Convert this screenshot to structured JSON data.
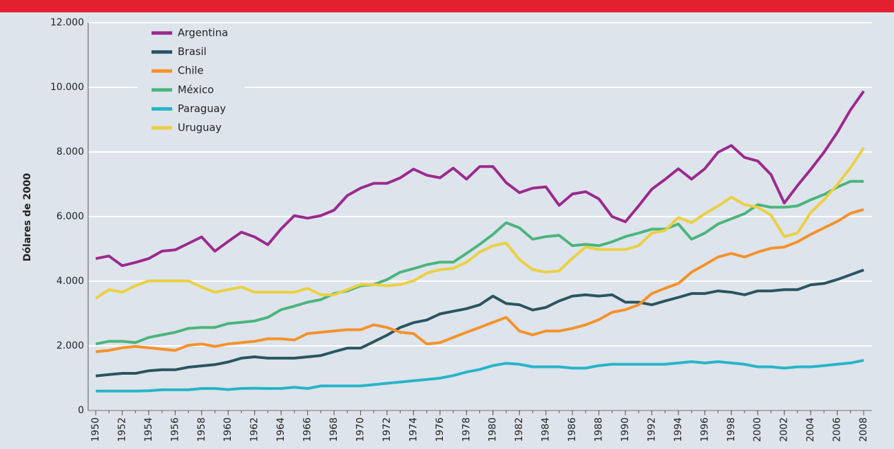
{
  "chart_data": {
    "type": "line",
    "ylabel": "Dólares de 2000",
    "x": [
      1950,
      1951,
      1952,
      1953,
      1954,
      1955,
      1956,
      1957,
      1958,
      1959,
      1960,
      1961,
      1962,
      1963,
      1964,
      1965,
      1966,
      1967,
      1968,
      1969,
      1970,
      1971,
      1972,
      1973,
      1974,
      1975,
      1976,
      1977,
      1978,
      1979,
      1980,
      1981,
      1982,
      1983,
      1984,
      1985,
      1986,
      1987,
      1988,
      1989,
      1990,
      1991,
      1992,
      1993,
      1994,
      1995,
      1996,
      1997,
      1998,
      1999,
      2000,
      2001,
      2002,
      2003,
      2004,
      2005,
      2006,
      2007,
      2008
    ],
    "xlim": [
      1950,
      2008
    ],
    "xticks": [
      1950,
      1952,
      1954,
      1956,
      1958,
      1960,
      1962,
      1964,
      1966,
      1968,
      1970,
      1972,
      1974,
      1976,
      1978,
      1980,
      1982,
      1984,
      1986,
      1988,
      1990,
      1992,
      1994,
      1996,
      1998,
      2000,
      2002,
      2004,
      2006,
      2008
    ],
    "ylim": [
      0,
      12000
    ],
    "yticks": [
      0,
      {
        "value": 2000,
        "label": "2.000"
      },
      {
        "value": 4000,
        "label": "4.000"
      },
      {
        "value": 6000,
        "label": "6.000"
      },
      {
        "value": 8000,
        "label": "8.000"
      },
      {
        "value": 10000,
        "label": "10.000"
      },
      {
        "value": 12000,
        "label": "12.000"
      }
    ],
    "grid": true,
    "legend": "upper left",
    "series": [
      {
        "name": "Argentina",
        "color": "#9b2a8e",
        "values": [
          4700,
          4780,
          4480,
          4580,
          4700,
          4930,
          4970,
          5170,
          5370,
          4930,
          5230,
          5520,
          5370,
          5130,
          5620,
          6030,
          5950,
          6030,
          6200,
          6650,
          6880,
          7030,
          7030,
          7200,
          7470,
          7280,
          7200,
          7500,
          7160,
          7550,
          7550,
          7050,
          6740,
          6880,
          6920,
          6350,
          6700,
          6770,
          6550,
          6000,
          5840,
          6330,
          6850,
          7150,
          7480,
          7160,
          7480,
          7990,
          8200,
          7830,
          7720,
          7300,
          6420,
          6960,
          7460,
          7990,
          8600,
          9300,
          9880
        ]
      },
      {
        "name": "Brasil",
        "color": "#2a5560",
        "values": [
          1070,
          1110,
          1150,
          1150,
          1230,
          1260,
          1260,
          1340,
          1380,
          1420,
          1500,
          1620,
          1660,
          1620,
          1620,
          1620,
          1660,
          1700,
          1820,
          1930,
          1930,
          2130,
          2330,
          2570,
          2720,
          2800,
          2990,
          3070,
          3150,
          3270,
          3540,
          3310,
          3270,
          3110,
          3190,
          3390,
          3540,
          3580,
          3540,
          3580,
          3350,
          3350,
          3270,
          3390,
          3500,
          3620,
          3620,
          3700,
          3660,
          3580,
          3700,
          3700,
          3740,
          3740,
          3890,
          3930,
          4050,
          4200,
          4350
        ]
      },
      {
        "name": "Chile",
        "color": "#f5922a",
        "values": [
          1820,
          1860,
          1940,
          1980,
          1940,
          1900,
          1860,
          2020,
          2060,
          1980,
          2060,
          2100,
          2140,
          2220,
          2220,
          2180,
          2380,
          2420,
          2460,
          2500,
          2500,
          2650,
          2570,
          2420,
          2380,
          2060,
          2100,
          2260,
          2420,
          2570,
          2730,
          2880,
          2460,
          2340,
          2460,
          2460,
          2540,
          2650,
          2810,
          3040,
          3120,
          3270,
          3620,
          3780,
          3930,
          4280,
          4510,
          4750,
          4860,
          4750,
          4900,
          5020,
          5060,
          5220,
          5450,
          5650,
          5850,
          6100,
          6220
        ]
      },
      {
        "name": "México",
        "color": "#4bb57c",
        "values": [
          2060,
          2140,
          2140,
          2100,
          2260,
          2340,
          2420,
          2540,
          2570,
          2570,
          2690,
          2730,
          2770,
          2880,
          3120,
          3230,
          3350,
          3430,
          3620,
          3700,
          3860,
          3900,
          4050,
          4280,
          4390,
          4510,
          4590,
          4590,
          4860,
          5140,
          5450,
          5810,
          5650,
          5300,
          5380,
          5420,
          5100,
          5140,
          5100,
          5220,
          5380,
          5490,
          5610,
          5610,
          5770,
          5300,
          5490,
          5770,
          5930,
          6090,
          6370,
          6290,
          6290,
          6330,
          6520,
          6680,
          6910,
          7090,
          7090
        ]
      },
      {
        "name": "Paraguay",
        "color": "#27b5c8",
        "values": [
          600,
          600,
          600,
          600,
          610,
          640,
          640,
          640,
          680,
          680,
          650,
          680,
          690,
          680,
          680,
          720,
          680,
          760,
          760,
          760,
          760,
          800,
          840,
          880,
          920,
          960,
          1000,
          1080,
          1190,
          1270,
          1390,
          1460,
          1430,
          1350,
          1350,
          1350,
          1310,
          1310,
          1390,
          1430,
          1430,
          1430,
          1430,
          1430,
          1470,
          1510,
          1470,
          1510,
          1470,
          1430,
          1350,
          1350,
          1310,
          1350,
          1350,
          1390,
          1430,
          1470,
          1550
        ]
      },
      {
        "name": "Uruguay",
        "color": "#ebd040",
        "values": [
          3470,
          3740,
          3660,
          3860,
          4010,
          4010,
          4010,
          4010,
          3820,
          3660,
          3740,
          3820,
          3660,
          3660,
          3660,
          3660,
          3780,
          3580,
          3580,
          3740,
          3900,
          3900,
          3860,
          3900,
          4010,
          4250,
          4360,
          4400,
          4590,
          4900,
          5100,
          5180,
          4670,
          4360,
          4280,
          4320,
          4710,
          5060,
          4980,
          4980,
          4980,
          5100,
          5490,
          5570,
          5970,
          5810,
          6090,
          6330,
          6600,
          6370,
          6290,
          6050,
          5380,
          5490,
          6130,
          6520,
          6990,
          7510,
          8130
        ]
      }
    ]
  }
}
